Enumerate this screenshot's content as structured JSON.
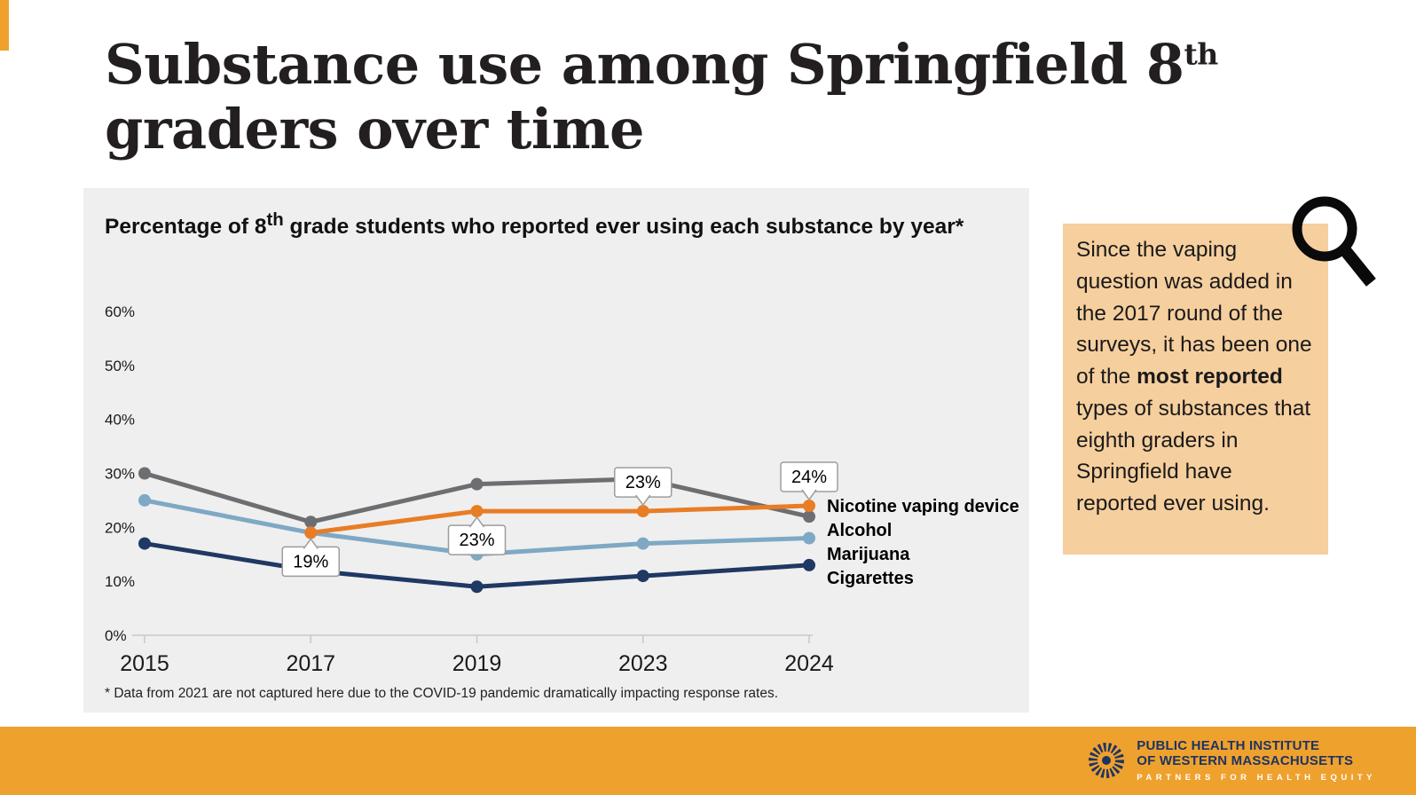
{
  "accent_color": "#efa12e",
  "title": {
    "line1_before_sup": "Substance use among Springfield 8",
    "sup": "th",
    "line2": "graders over time"
  },
  "chart": {
    "subtitle_before_sup": "Percentage of 8",
    "subtitle_sup": "th",
    "subtitle_after_sup": " grade students who reported ever using each substance by year*",
    "footnote": "* Data from 2021 are not captured here due to the COVID-19 pandemic dramatically impacting response rates."
  },
  "chart_data": {
    "type": "line",
    "categories": [
      "2015",
      "2017",
      "2019",
      "2023",
      "2024"
    ],
    "series": [
      {
        "name": "Alcohol",
        "color": "#6d6e71",
        "values": [
          30,
          21,
          28,
          29,
          22
        ]
      },
      {
        "name": "Marijuana",
        "color": "#7fa8c4",
        "values": [
          25,
          19,
          15,
          17,
          18
        ]
      },
      {
        "name": "Cigarettes",
        "color": "#1f3864",
        "values": [
          17,
          12,
          9,
          11,
          13
        ]
      },
      {
        "name": "Nicotine vaping device",
        "color": "#e87d26",
        "values": [
          null,
          19,
          23,
          23,
          24
        ]
      }
    ],
    "ylim": [
      0,
      60
    ],
    "yticks": [
      0,
      10,
      20,
      30,
      40,
      50,
      60
    ],
    "grid": false,
    "legend_position": "right-of-line-ends",
    "annotations": [
      {
        "category": "2017",
        "series": "Nicotine vaping device",
        "value": 19,
        "text": "19%",
        "placement": "below"
      },
      {
        "category": "2019",
        "series": "Nicotine vaping device",
        "value": 23,
        "text": "23%",
        "placement": "below"
      },
      {
        "category": "2023",
        "series": "Nicotine vaping device",
        "value": 23,
        "text": "23%",
        "placement": "above"
      },
      {
        "category": "2024",
        "series": "Nicotine vaping device",
        "value": 24,
        "text": "24%",
        "placement": "above"
      }
    ]
  },
  "sidebar_note": {
    "text_before_bold": "Since the vaping question was added in the 2017 round of the surveys, it has been one of the ",
    "bold_text": "most reported",
    "text_after_bold": " types of substances that eighth graders in Springfield have reported ever using."
  },
  "footer": {
    "org_line1": "PUBLIC HEALTH INSTITUTE",
    "org_line2": "OF WESTERN MASSACHUSETTS",
    "tagline": "PARTNERS FOR HEALTH EQUITY"
  }
}
